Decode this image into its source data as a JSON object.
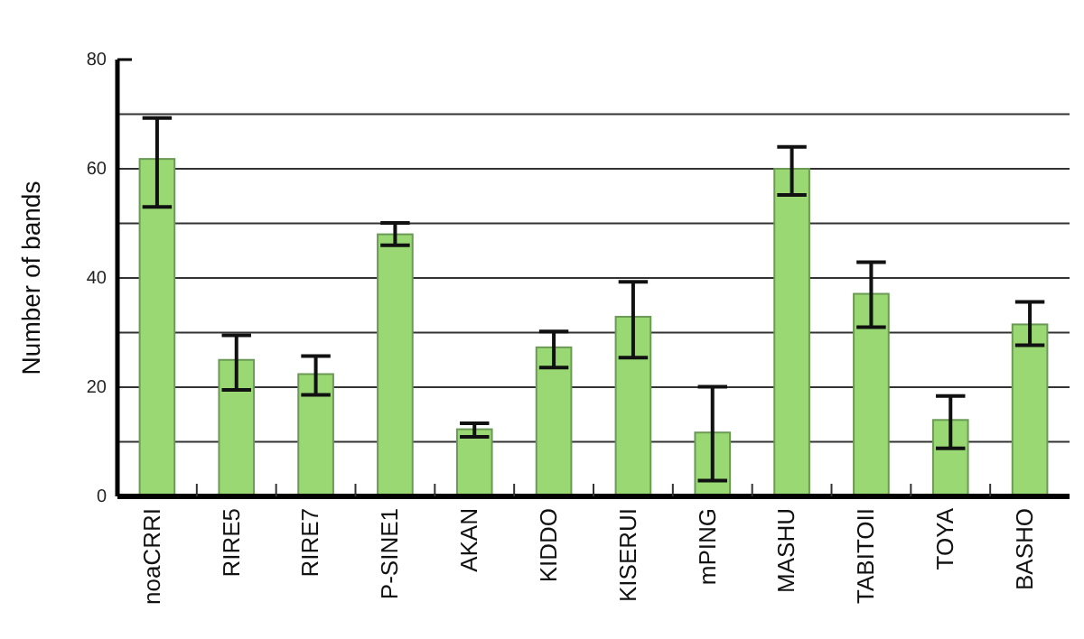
{
  "chart_data": {
    "type": "bar",
    "ylabel": "Number of bands",
    "categories": [
      "noaCRRI",
      "RIRE5",
      "RIRE7",
      "P-SINE1",
      "AKAN",
      "KIDDO",
      "KISERUI",
      "mPING",
      "MASHU",
      "TABITOII",
      "TOYA",
      "BASHO"
    ],
    "values": [
      61.8,
      25.0,
      22.4,
      48.0,
      12.3,
      27.3,
      32.9,
      11.7,
      60.0,
      37.1,
      14.0,
      31.5
    ],
    "errors": [
      [
        53.0,
        69.3
      ],
      [
        19.5,
        29.5
      ],
      [
        18.6,
        25.7
      ],
      [
        46.0,
        50.1
      ],
      [
        10.9,
        13.4
      ],
      [
        23.6,
        30.2
      ],
      [
        25.4,
        39.3
      ],
      [
        2.9,
        20.1
      ],
      [
        55.2,
        64.0
      ],
      [
        31.0,
        42.9
      ],
      [
        8.8,
        18.4
      ],
      [
        27.7,
        35.6
      ]
    ],
    "color": "#99d873",
    "ylim": [
      0,
      80
    ],
    "yticks": [
      0,
      {
        "value": 10,
        "label": null
      },
      20,
      {
        "value": 30,
        "label": null
      },
      40,
      {
        "value": 50,
        "label": null
      },
      60,
      {
        "value": 70,
        "label": null
      },
      80
    ],
    "grid": "y"
  }
}
